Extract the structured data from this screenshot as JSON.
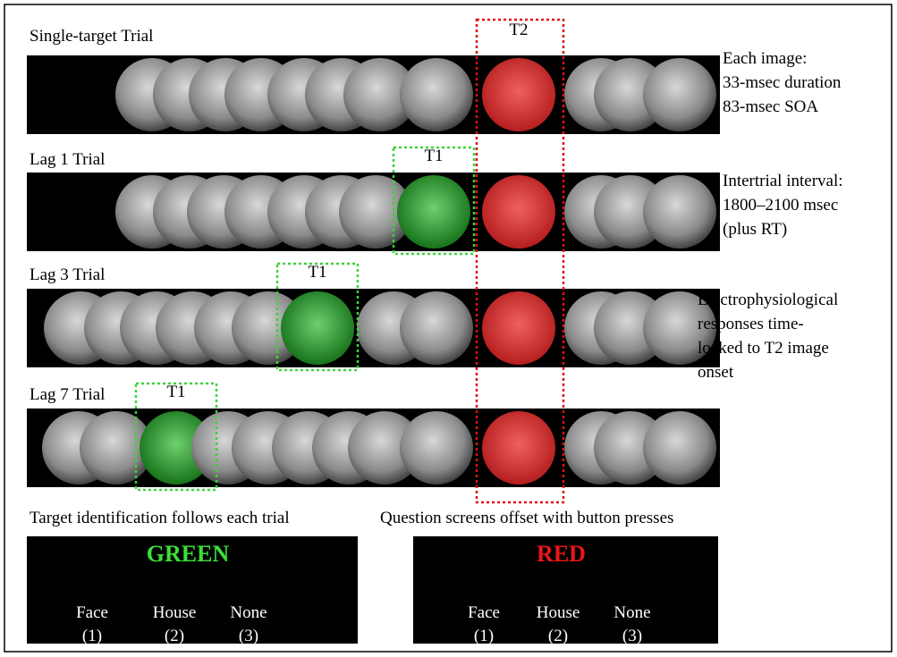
{
  "trials": [
    {
      "label": "Single-target Trial"
    },
    {
      "label": "Lag 1 Trial",
      "target": "T1"
    },
    {
      "label": "Lag 3 Trial",
      "target": "T1"
    },
    {
      "label": "Lag 7 Trial",
      "target": "T1"
    }
  ],
  "t2_label": "T2",
  "notes": [
    [
      "Each image:",
      "33-msec duration",
      "83-msec SOA"
    ],
    [
      "Intertrial interval:",
      "1800–2100 msec",
      "(plus RT)"
    ],
    [
      "Electrophysiological",
      "responses time-",
      "locked to T2 image",
      "onset"
    ]
  ],
  "screens": [
    {
      "caption": "Target identification follows each trial",
      "word": "GREEN",
      "options": [
        {
          "name": "Face",
          "key": "(1)"
        },
        {
          "name": "House",
          "key": "(2)"
        },
        {
          "name": "None",
          "key": "(3)"
        }
      ]
    },
    {
      "caption": "Question screens offset with button presses",
      "word": "RED",
      "options": [
        {
          "name": "Face",
          "key": "(1)"
        },
        {
          "name": "House",
          "key": "(2)"
        },
        {
          "name": "None",
          "key": "(3)"
        }
      ]
    }
  ]
}
